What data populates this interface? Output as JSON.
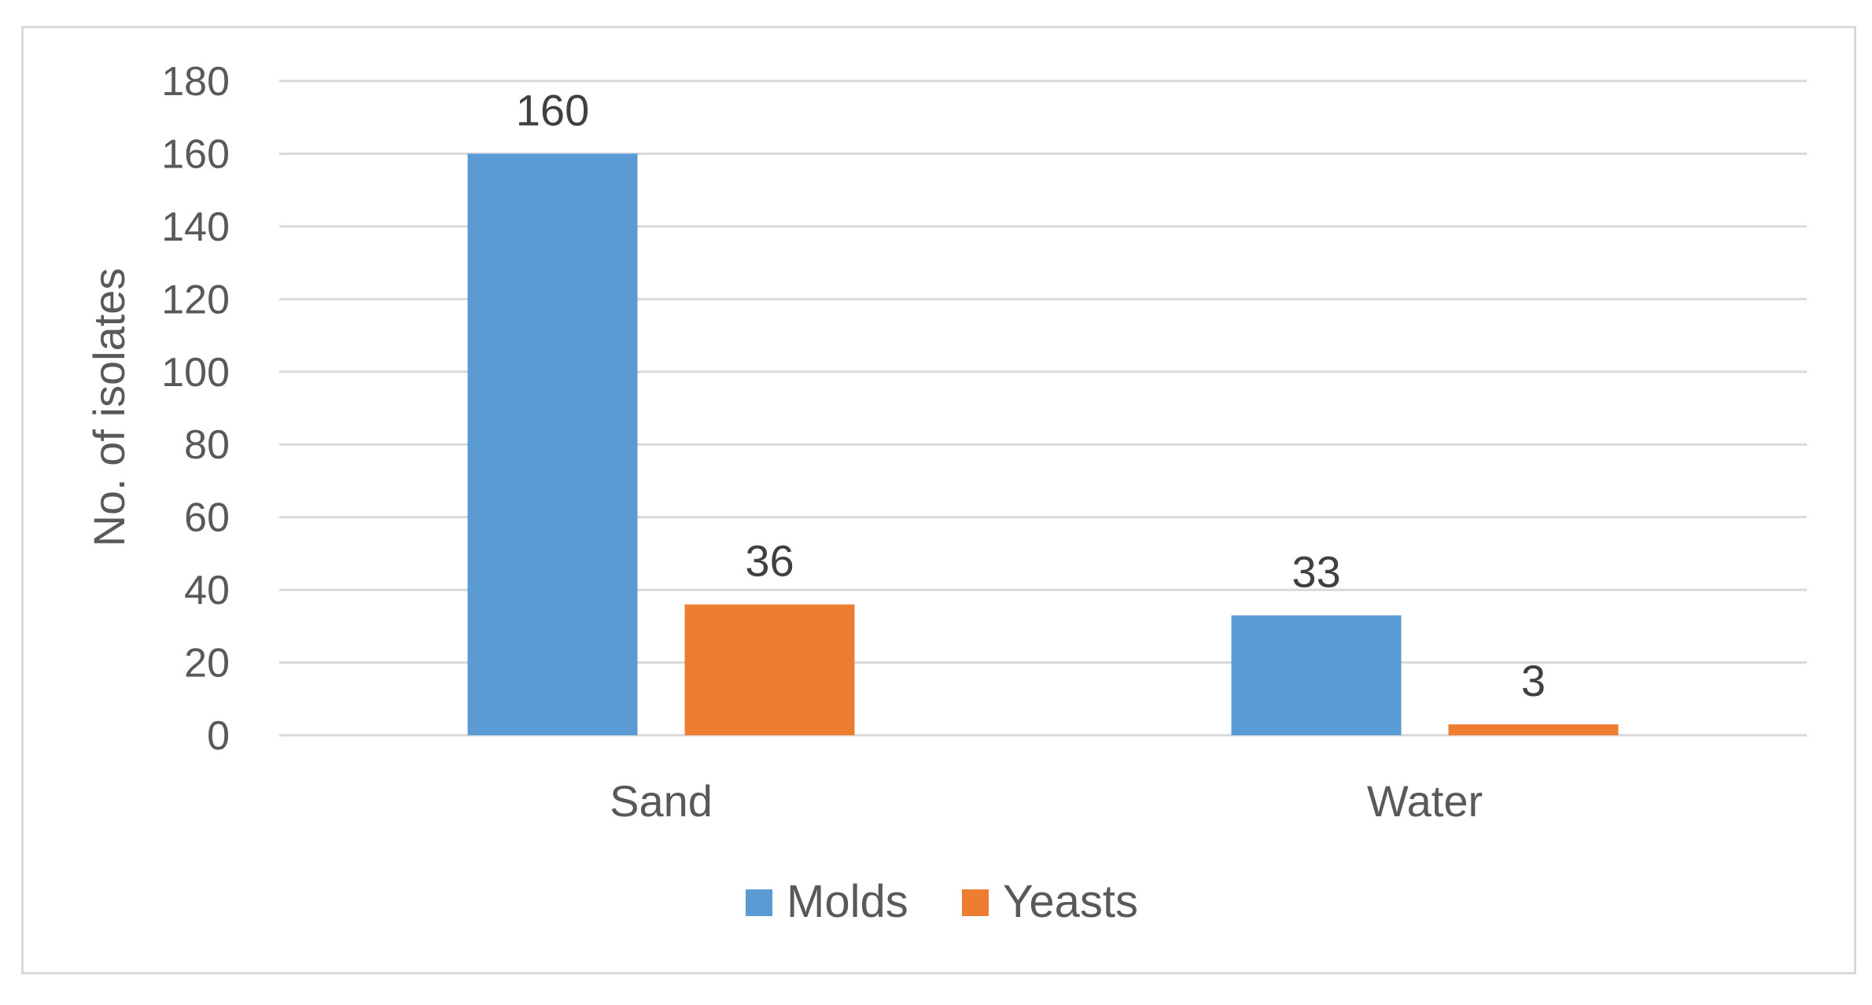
{
  "chart_data": {
    "type": "bar",
    "categories": [
      "Sand",
      "Water"
    ],
    "series": [
      {
        "name": "Molds",
        "values": [
          160,
          33
        ],
        "color": "#5b9bd5"
      },
      {
        "name": "Yeasts",
        "values": [
          36,
          3
        ],
        "color": "#ed7d31"
      }
    ],
    "title": "",
    "xlabel": "",
    "ylabel": "No. of isolates",
    "ylim": [
      0,
      180
    ],
    "yticks": [
      0,
      20,
      40,
      60,
      80,
      100,
      120,
      140,
      160,
      180
    ],
    "grid": true,
    "legend_position": "bottom",
    "data_labels": true
  }
}
